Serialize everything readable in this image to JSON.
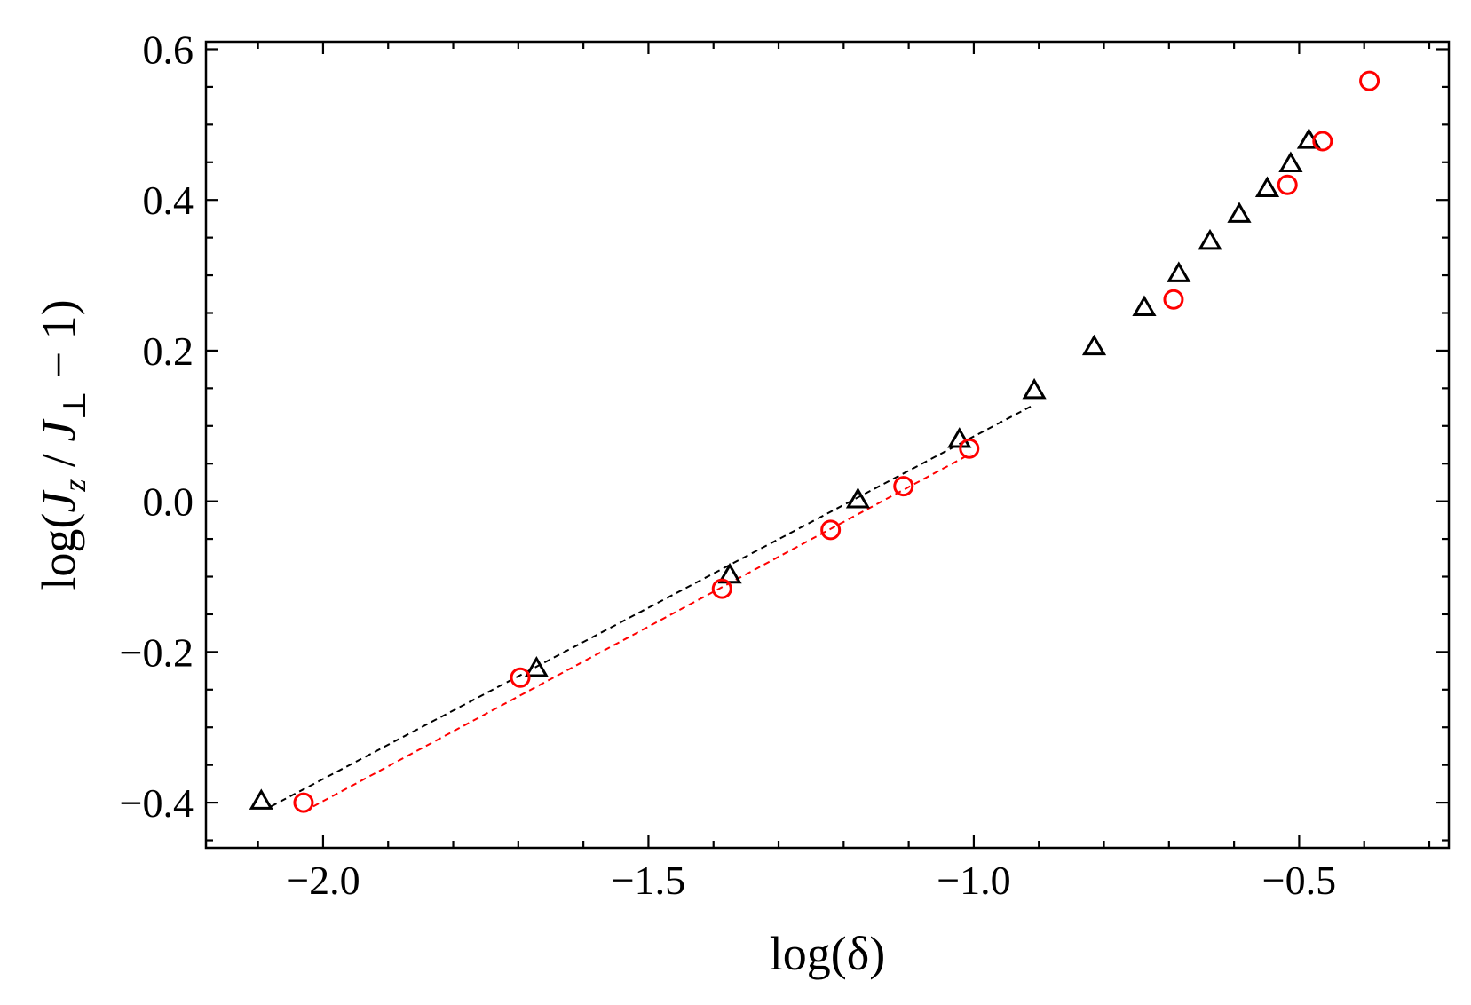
{
  "chart_data": {
    "type": "scatter",
    "xlabel": "log(δ)",
    "ylabel": {
      "prefix": "log(",
      "j1": "J",
      "sub1": "z",
      "mid": " / ",
      "j2": "J",
      "sub2": "⊥",
      "suffix": " − 1)"
    },
    "xlim": [
      -2.18,
      -0.27
    ],
    "ylim": [
      -0.46,
      0.61
    ],
    "x_ticks": [
      -2.0,
      -1.5,
      -1.0,
      -0.5
    ],
    "x_tick_labels": [
      "−2.0",
      "−1.5",
      "−1.0",
      "−0.5"
    ],
    "y_ticks": [
      -0.4,
      -0.2,
      0.0,
      0.2,
      0.4,
      0.6
    ],
    "y_tick_labels": [
      "−0.4",
      "−0.2",
      "0.0",
      "0.2",
      "0.4",
      "0.6"
    ],
    "x_minor_step": 0.1,
    "y_minor_step": 0.05,
    "grid": false,
    "series": [
      {
        "marker": "triangle",
        "color": "#000000",
        "x": [
          -2.095,
          -1.672,
          -1.375,
          -1.178,
          -1.022,
          -0.907,
          -0.815,
          -0.738,
          -0.685,
          -0.637,
          -0.592,
          -0.549,
          -0.513,
          -0.485
        ],
        "y": [
          -0.398,
          -0.222,
          -0.098,
          0.002,
          0.082,
          0.147,
          0.205,
          0.257,
          0.302,
          0.345,
          0.381,
          0.415,
          0.448,
          0.479
        ]
      },
      {
        "marker": "circle",
        "color": "#ff0000",
        "x": [
          -2.03,
          -1.697,
          -1.387,
          -1.22,
          -1.108,
          -1.007,
          -0.693,
          -0.518,
          -0.464,
          -0.392
        ],
        "y": [
          -0.4,
          -0.234,
          -0.116,
          -0.038,
          0.02,
          0.07,
          0.268,
          0.42,
          0.478,
          0.558
        ]
      }
    ],
    "fit_lines": [
      {
        "style": "dashed",
        "color": "#000000",
        "x": [
          -2.08,
          -0.91
        ],
        "y": [
          -0.405,
          0.127
        ]
      },
      {
        "style": "dashed",
        "color": "#ff0000",
        "x": [
          -2.015,
          -1.005
        ],
        "y": [
          -0.405,
          0.063
        ]
      }
    ]
  }
}
